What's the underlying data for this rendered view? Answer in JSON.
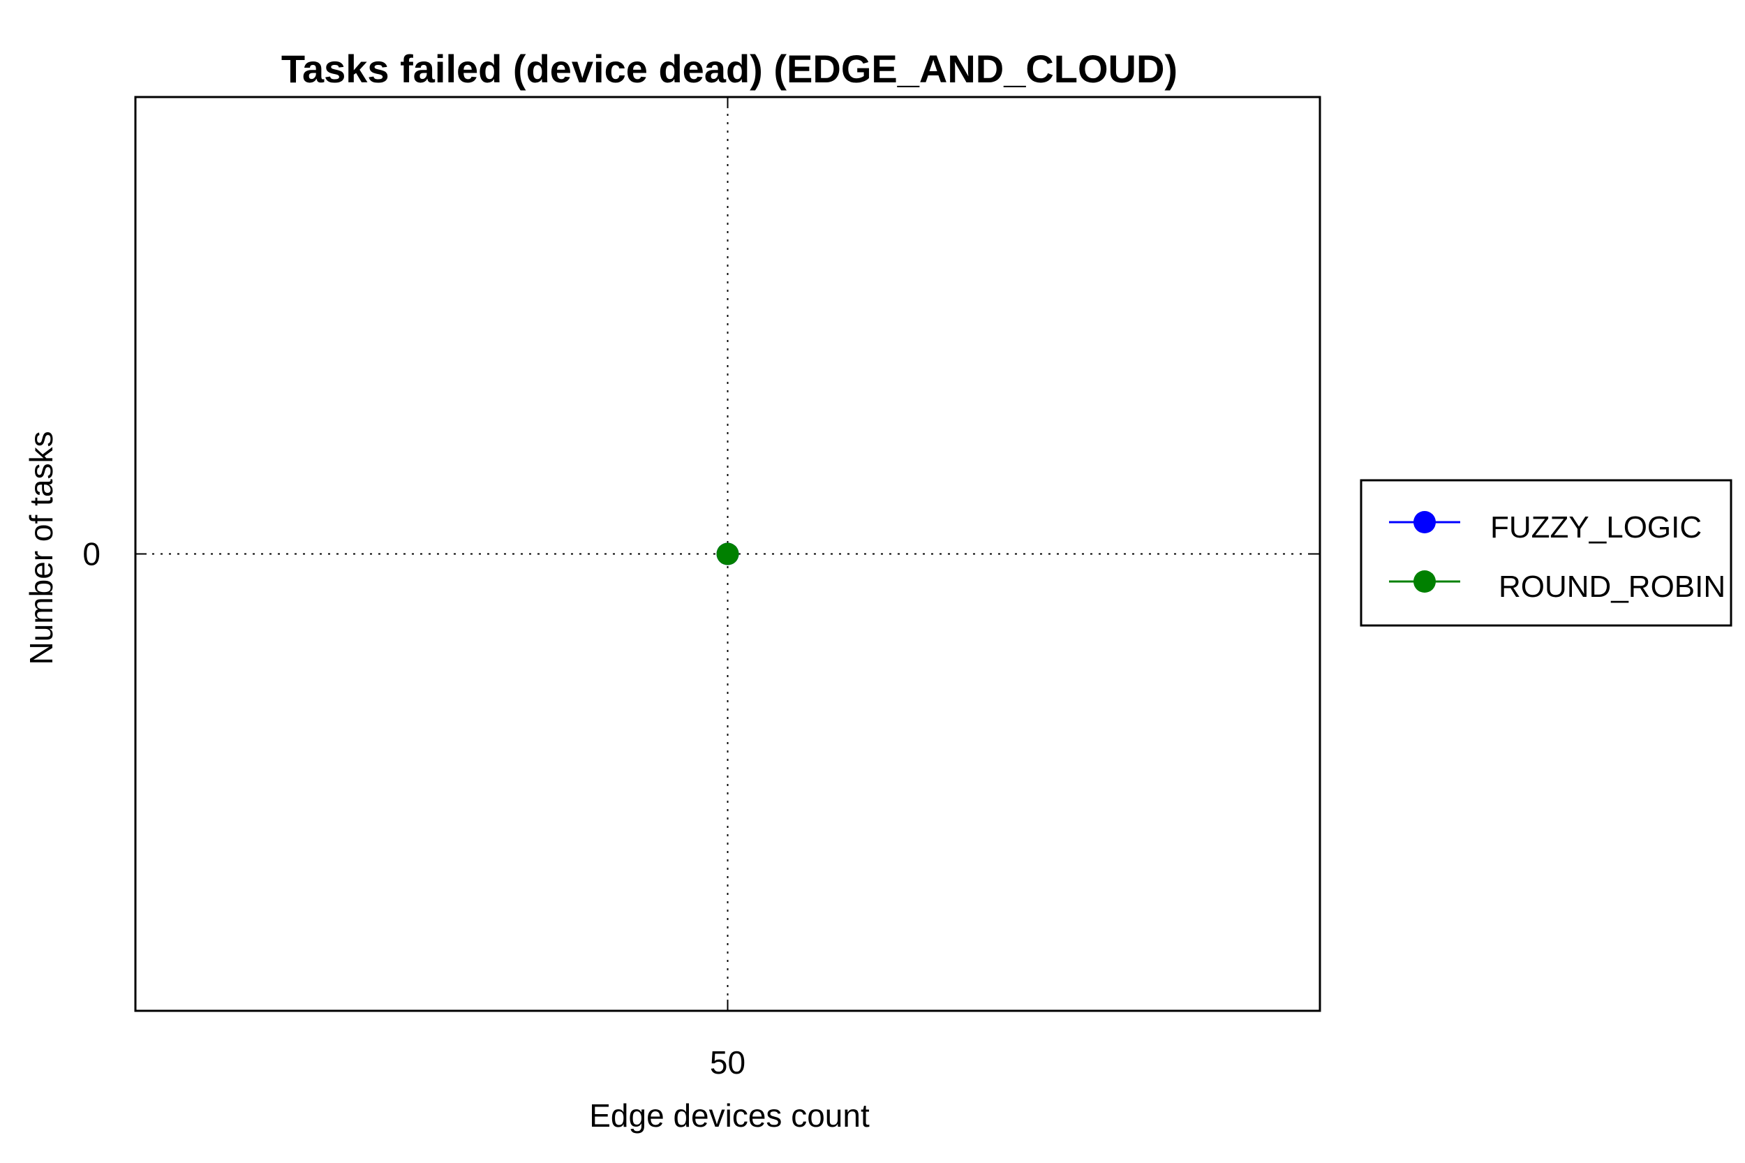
{
  "chart_data": {
    "type": "line",
    "title": "Tasks failed (device dead) (EDGE_AND_CLOUD)",
    "xlabel": "Edge devices count",
    "ylabel": "Number of tasks",
    "x": [
      50
    ],
    "x_ticks": [
      "50"
    ],
    "y_ticks": [
      "0"
    ],
    "xlim": [
      49,
      51
    ],
    "ylim": [
      -1,
      1
    ],
    "grid": true,
    "legend_position": "outside-right",
    "series": [
      {
        "name": "FUZZY_LOGIC",
        "color": "#0000ff",
        "values": [
          0
        ]
      },
      {
        "name": "ROUND_ROBIN",
        "color": "#008000",
        "values": [
          0
        ]
      }
    ]
  }
}
